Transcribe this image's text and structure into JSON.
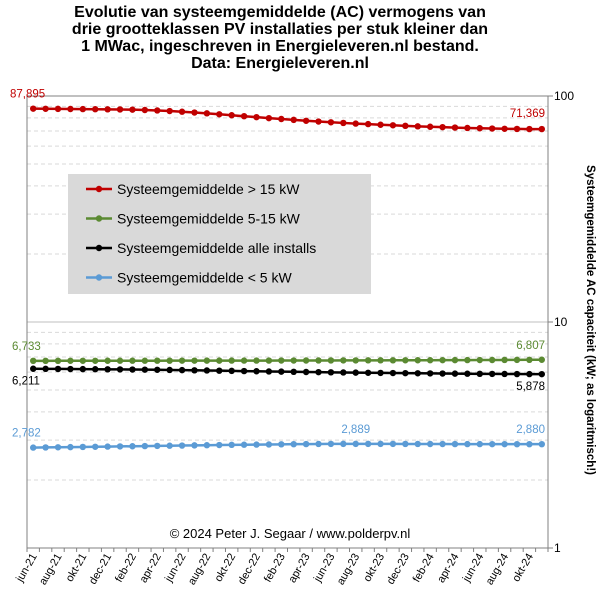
{
  "chart_data": {
    "type": "line",
    "title": [
      "Evolutie van systeemgemiddelde (AC) vermogens van",
      "drie grootteklassen PV installaties per stuk kleiner dan",
      "1 MWac, ingeschreven in Energieleveren.nl bestand.",
      "Data: Energieleveren.nl"
    ],
    "ylabel": "Systeemgemiddelde AC capaciteit (kW; as logaritmisch!)",
    "yscale": "log",
    "ylim": [
      1,
      100
    ],
    "yticks": [
      "1",
      "10",
      "100"
    ],
    "grid": true,
    "legend_position": "upper-left",
    "copyright": "© 2024 Peter J. Segaar / www.polderpv.nl",
    "x_tick_labels": [
      "jun-21",
      "aug-21",
      "okt-21",
      "dec-21",
      "feb-22",
      "apr-22",
      "jun-22",
      "aug-22",
      "okt-22",
      "dec-22",
      "feb-23",
      "apr-23",
      "jun-23",
      "aug-23",
      "okt-23",
      "dec-23",
      "feb-24",
      "apr-24",
      "jun-24",
      "aug-24",
      "okt-24"
    ],
    "months": [
      "jun-21",
      "jul-21",
      "aug-21",
      "sep-21",
      "okt-21",
      "nov-21",
      "dec-21",
      "jan-22",
      "feb-22",
      "mrt-22",
      "apr-22",
      "mei-22",
      "jun-22",
      "jul-22",
      "aug-22",
      "sep-22",
      "okt-22",
      "nov-22",
      "dec-22",
      "jan-23",
      "feb-23",
      "mrt-23",
      "apr-23",
      "mei-23",
      "jun-23",
      "jul-23",
      "aug-23",
      "sep-23",
      "okt-23",
      "nov-23",
      "dec-23",
      "jan-24",
      "feb-24",
      "mrt-24",
      "apr-24",
      "mei-24",
      "jun-24",
      "jul-24",
      "aug-24",
      "sep-24",
      "okt-24",
      "nov-24"
    ],
    "series": [
      {
        "name": "Systeemgemiddelde > 15 kW",
        "color": "#c00000",
        "first_label": "87,895",
        "last_label": "71,369",
        "values": [
          87.9,
          87.8,
          87.7,
          87.6,
          87.5,
          87.4,
          87.3,
          87.2,
          87.0,
          86.7,
          86.3,
          85.8,
          85.2,
          84.5,
          83.8,
          83.0,
          82.2,
          81.4,
          80.6,
          79.8,
          79.1,
          78.4,
          77.7,
          77.1,
          76.5,
          76.0,
          75.5,
          75.1,
          74.6,
          74.2,
          73.8,
          73.4,
          73.1,
          72.8,
          72.5,
          72.2,
          72.0,
          71.8,
          71.6,
          71.5,
          71.4,
          71.4
        ]
      },
      {
        "name": "Systeemgemiddelde 5-15 kW",
        "color": "#5b8a32",
        "first_label": "6,733",
        "last_label": "6,807",
        "values": [
          6.733,
          6.733,
          6.734,
          6.735,
          6.736,
          6.737,
          6.738,
          6.739,
          6.74,
          6.741,
          6.742,
          6.743,
          6.744,
          6.745,
          6.746,
          6.747,
          6.748,
          6.749,
          6.75,
          6.751,
          6.752,
          6.753,
          6.755,
          6.757,
          6.759,
          6.761,
          6.763,
          6.765,
          6.767,
          6.769,
          6.771,
          6.773,
          6.775,
          6.778,
          6.781,
          6.784,
          6.787,
          6.79,
          6.794,
          6.798,
          6.803,
          6.807
        ]
      },
      {
        "name": "Systeemgemiddelde alle installs",
        "color": "#000000",
        "first_label": "6,211",
        "last_label": "5,878",
        "values": [
          6.211,
          6.205,
          6.199,
          6.193,
          6.187,
          6.181,
          6.175,
          6.169,
          6.162,
          6.154,
          6.145,
          6.135,
          6.124,
          6.113,
          6.102,
          6.09,
          6.078,
          6.066,
          6.054,
          6.042,
          6.031,
          6.02,
          6.009,
          5.999,
          5.989,
          5.979,
          5.97,
          5.961,
          5.953,
          5.945,
          5.937,
          5.93,
          5.923,
          5.916,
          5.91,
          5.904,
          5.898,
          5.893,
          5.888,
          5.884,
          5.881,
          5.878
        ]
      },
      {
        "name": "Systeemgemiddelde < 5 kW",
        "color": "#5b9bd5",
        "first_label": "2,782",
        "mid_label": "2,889",
        "last_label": "2,880",
        "values": [
          2.782,
          2.786,
          2.79,
          2.795,
          2.8,
          2.805,
          2.81,
          2.815,
          2.82,
          2.825,
          2.83,
          2.835,
          2.84,
          2.845,
          2.85,
          2.855,
          2.86,
          2.864,
          2.868,
          2.872,
          2.876,
          2.88,
          2.883,
          2.886,
          2.888,
          2.889,
          2.889,
          2.889,
          2.889,
          2.888,
          2.887,
          2.886,
          2.885,
          2.884,
          2.883,
          2.882,
          2.882,
          2.881,
          2.881,
          2.88,
          2.88,
          2.88
        ]
      }
    ]
  }
}
